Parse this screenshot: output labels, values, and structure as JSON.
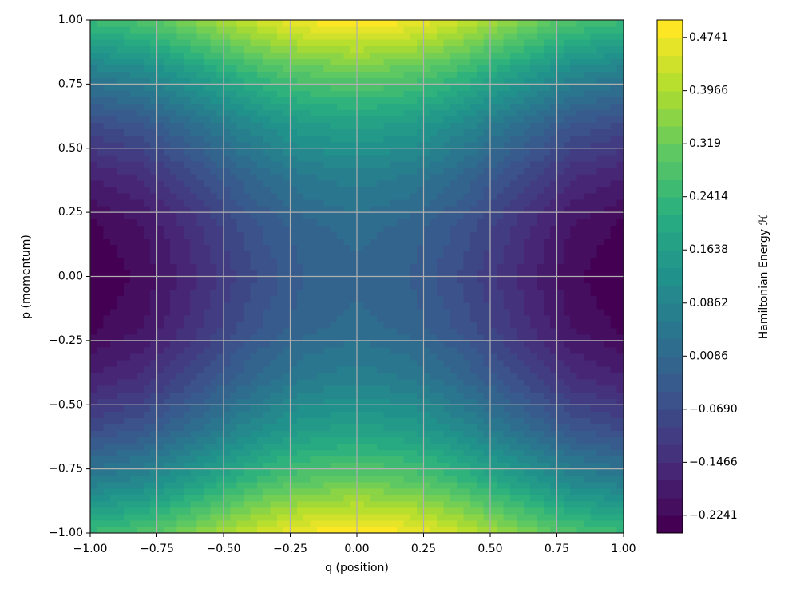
{
  "chart_data": {
    "type": "contourf",
    "x_label": "q (position)",
    "y_label": "p (momentum)",
    "colorbar_label": "Hamiltonian Energy ℋ",
    "x": [
      -1,
      -0.8,
      -0.6,
      -0.4,
      -0.2,
      0,
      0.2,
      0.4,
      0.6,
      0.8,
      1
    ],
    "y": [
      -1,
      -0.8,
      -0.6,
      -0.4,
      -0.2,
      0,
      0.2,
      0.4,
      0.6,
      0.8,
      1
    ],
    "z": [
      [
        0.25,
        0.2824,
        0.3524,
        0.4264,
        0.4804,
        0.5,
        0.4804,
        0.4264,
        0.3524,
        0.2824,
        0.25
      ],
      [
        0.07,
        0.1024,
        0.1724,
        0.2464,
        0.3004,
        0.32,
        0.3004,
        0.2464,
        0.1724,
        0.1024,
        0.07
      ],
      [
        -0.07,
        -0.0376,
        0.0324,
        0.1064,
        0.1604,
        0.18,
        0.1604,
        0.1064,
        0.0324,
        -0.0376,
        -0.07
      ],
      [
        -0.17,
        -0.1376,
        -0.0676,
        0.0064,
        0.0604,
        0.08,
        0.0604,
        0.0064,
        -0.0676,
        -0.1376,
        -0.17
      ],
      [
        -0.23,
        -0.1976,
        -0.1276,
        -0.0536,
        0.0004,
        0.02,
        0.0004,
        -0.0536,
        -0.1276,
        -0.1976,
        -0.23
      ],
      [
        -0.25,
        -0.2176,
        -0.1476,
        -0.0736,
        -0.0196,
        0,
        -0.0196,
        -0.0736,
        -0.1476,
        -0.2176,
        -0.25
      ],
      [
        -0.23,
        -0.1976,
        -0.1276,
        -0.0536,
        0.0004,
        0.02,
        0.0004,
        -0.0536,
        -0.1276,
        -0.1976,
        -0.23
      ],
      [
        -0.17,
        -0.1376,
        -0.0676,
        0.0064,
        0.0604,
        0.08,
        0.0604,
        0.0064,
        -0.0676,
        -0.1376,
        -0.17
      ],
      [
        -0.07,
        -0.0376,
        0.0324,
        0.1064,
        0.1604,
        0.18,
        0.1604,
        0.1064,
        0.0324,
        -0.0376,
        -0.07
      ],
      [
        0.07,
        0.1024,
        0.1724,
        0.2464,
        0.3004,
        0.32,
        0.3004,
        0.2464,
        0.1724,
        0.1024,
        0.07
      ],
      [
        0.25,
        0.2824,
        0.3524,
        0.4264,
        0.4804,
        0.5,
        0.4804,
        0.4264,
        0.3524,
        0.2824,
        0.25
      ]
    ],
    "zlim": [
      -0.25,
      0.5
    ],
    "levels": 30,
    "colormap": [
      "#440154",
      "#472d7b",
      "#3b528b",
      "#2c728e",
      "#21918c",
      "#28ae80",
      "#5ec962",
      "#addc30",
      "#fde725"
    ],
    "xlim": [
      -1,
      1
    ],
    "ylim": [
      -1,
      1
    ],
    "xticks": [
      {
        "value": -1,
        "label": "−1.00"
      },
      {
        "value": -0.75,
        "label": "−0.75"
      },
      {
        "value": -0.5,
        "label": "−0.50"
      },
      {
        "value": -0.25,
        "label": "−0.25"
      },
      {
        "value": 0,
        "label": "0.00"
      },
      {
        "value": 0.25,
        "label": "0.25"
      },
      {
        "value": 0.5,
        "label": "0.50"
      },
      {
        "value": 0.75,
        "label": "0.75"
      },
      {
        "value": 1,
        "label": "1.00"
      }
    ],
    "yticks": [
      {
        "value": -1,
        "label": "−1.00"
      },
      {
        "value": -0.75,
        "label": "−0.75"
      },
      {
        "value": -0.5,
        "label": "−0.50"
      },
      {
        "value": -0.25,
        "label": "−0.25"
      },
      {
        "value": 0,
        "label": "0.00"
      },
      {
        "value": 0.25,
        "label": "0.25"
      },
      {
        "value": 0.5,
        "label": "0.50"
      },
      {
        "value": 0.75,
        "label": "0.75"
      },
      {
        "value": 1,
        "label": "1.00"
      }
    ],
    "colorbar_ticks": [
      {
        "value": -0.2241,
        "label": "−0.2241"
      },
      {
        "value": -0.1466,
        "label": "−0.1466"
      },
      {
        "value": -0.069,
        "label": "−0.0690"
      },
      0.0086,
      0.0862,
      0.1638,
      0.2414,
      0.319,
      0.3966,
      0.4741
    ],
    "grid": true,
    "grid_color": "#b0b0b0"
  }
}
